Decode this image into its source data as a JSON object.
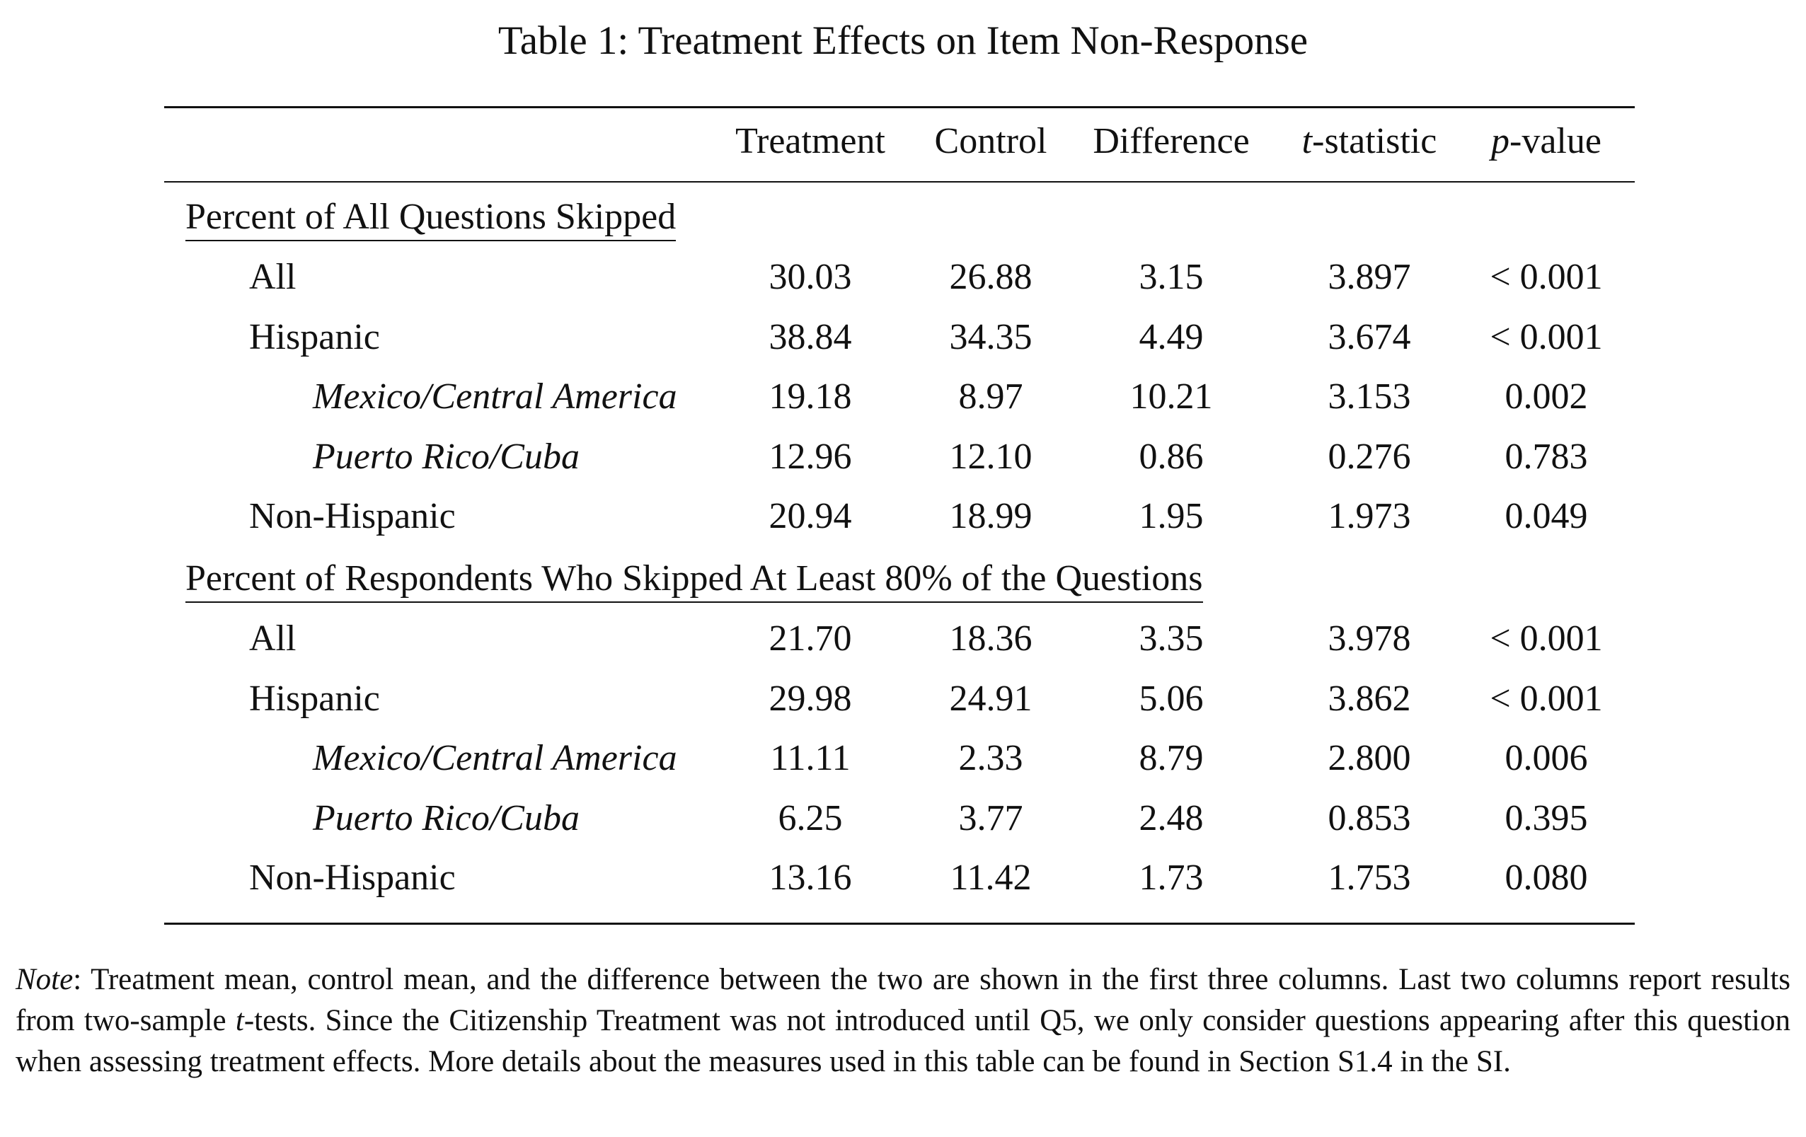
{
  "caption": "Table 1: Treatment Effects on Item Non-Response",
  "columns": {
    "treatment": "Treatment",
    "control": "Control",
    "difference": "Difference",
    "t_stat_italic": "t",
    "t_stat_rest": "-statistic",
    "p_value_italic": "p",
    "p_value_rest": "-value"
  },
  "sections": [
    {
      "title": "Percent of All Questions Skipped",
      "rows": [
        {
          "label": "All",
          "treatment": "30.03",
          "control": "26.88",
          "difference": "3.15",
          "t_statistic": "3.897",
          "p_value": "< 0.001"
        },
        {
          "label": "Hispanic",
          "treatment": "38.84",
          "control": "34.35",
          "difference": "4.49",
          "t_statistic": "3.674",
          "p_value": "< 0.001"
        },
        {
          "label": "Mexico/Central America",
          "treatment": "19.18",
          "control": "8.97",
          "difference": "10.21",
          "t_statistic": "3.153",
          "p_value": "0.002"
        },
        {
          "label": "Puerto Rico/Cuba",
          "treatment": "12.96",
          "control": "12.10",
          "difference": "0.86",
          "t_statistic": "0.276",
          "p_value": "0.783"
        },
        {
          "label": "Non-Hispanic",
          "treatment": "20.94",
          "control": "18.99",
          "difference": "1.95",
          "t_statistic": "1.973",
          "p_value": "0.049"
        }
      ]
    },
    {
      "title": "Percent of Respondents Who Skipped At Least 80% of the Questions",
      "rows": [
        {
          "label": "All",
          "treatment": "21.70",
          "control": "18.36",
          "difference": "3.35",
          "t_statistic": "3.978",
          "p_value": "< 0.001"
        },
        {
          "label": "Hispanic",
          "treatment": "29.98",
          "control": "24.91",
          "difference": "5.06",
          "t_statistic": "3.862",
          "p_value": "< 0.001"
        },
        {
          "label": "Mexico/Central America",
          "treatment": "11.11",
          "control": "2.33",
          "difference": "8.79",
          "t_statistic": "2.800",
          "p_value": "0.006"
        },
        {
          "label": "Puerto Rico/Cuba",
          "treatment": "6.25",
          "control": "3.77",
          "difference": "2.48",
          "t_statistic": "0.853",
          "p_value": "0.395"
        },
        {
          "label": "Non-Hispanic",
          "treatment": "13.16",
          "control": "11.42",
          "difference": "1.73",
          "t_statistic": "1.753",
          "p_value": "0.080"
        }
      ]
    }
  ],
  "note": {
    "label": "Note",
    "part1": ": Treatment mean, control mean, and the difference between the two are shown in the first three columns. Last two columns report results from two-sample ",
    "t_italic": "t",
    "part2": "-tests. Since the Citizenship Treatment was not introduced until Q5, we only consider questions appearing after this question when assessing treatment effects. More details about the measures used in this table can be found in Section S1.4 in the SI."
  }
}
